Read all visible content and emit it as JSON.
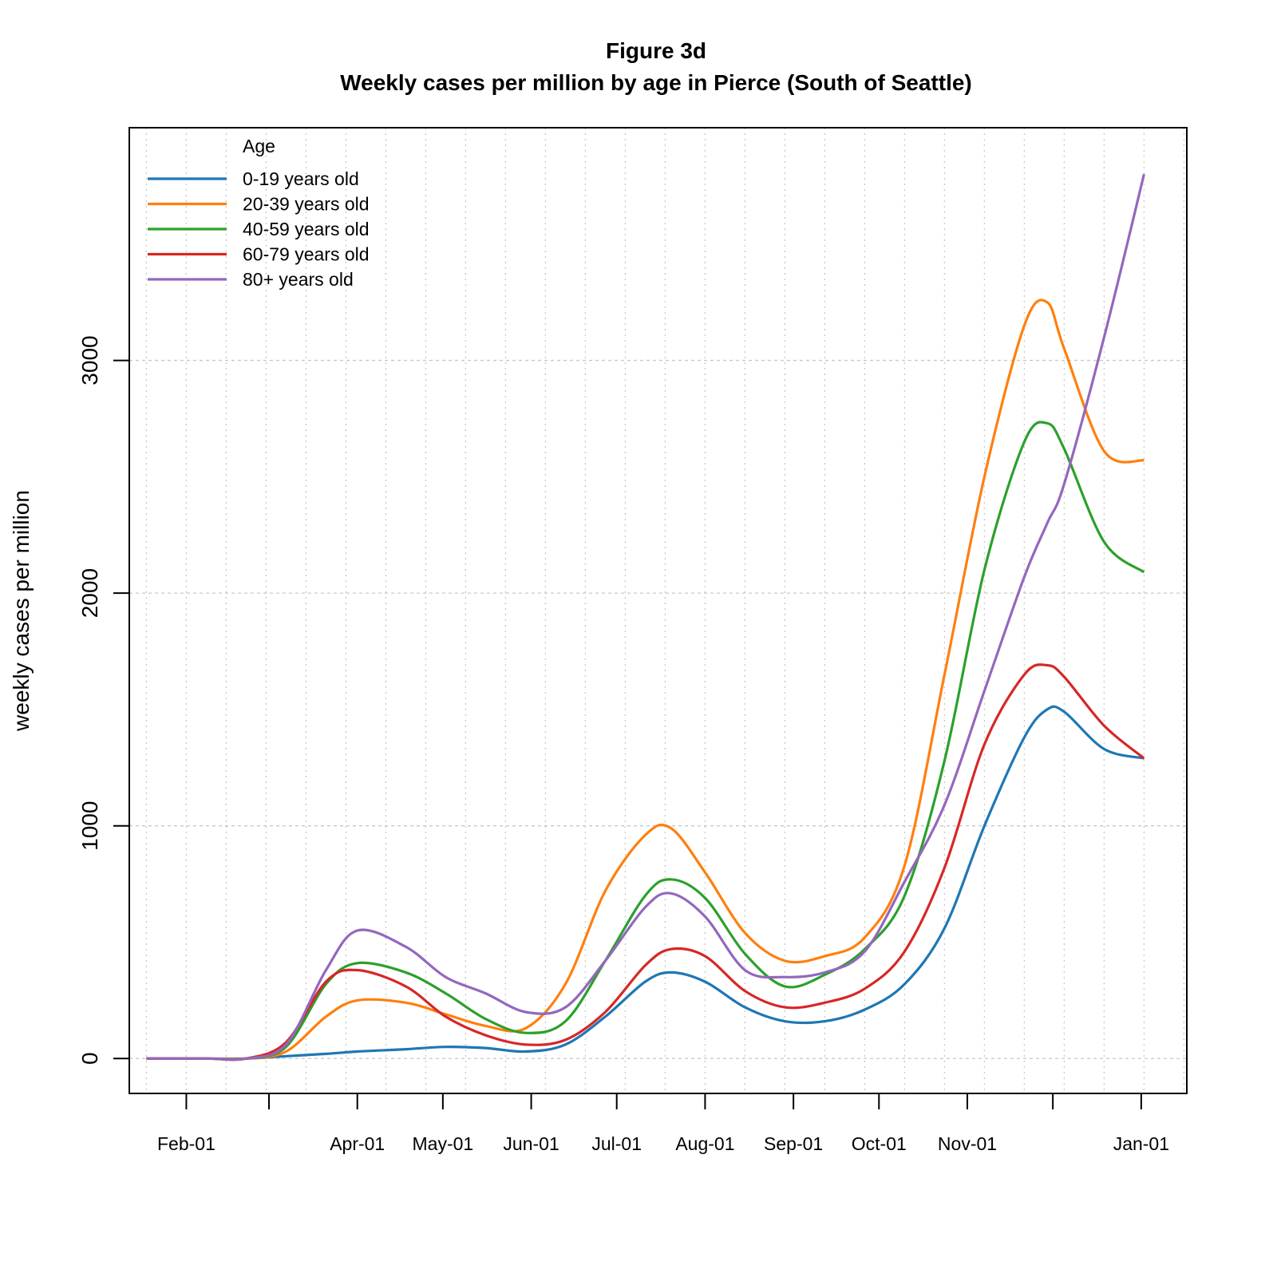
{
  "chart_data": {
    "type": "line",
    "title": "Figure 3d",
    "subtitle": "Weekly cases per million by age in Pierce (South of Seattle)",
    "xlabel": "",
    "ylabel": "weekly cases per million",
    "x_tick_labels": [
      "Feb-01",
      "",
      "Apr-01",
      "May-01",
      "Jun-01",
      "Jul-01",
      "Aug-01",
      "Sep-01",
      "Oct-01",
      "Nov-01",
      "",
      "Jan-01"
    ],
    "x_tick_dates": [
      "2020-02-01",
      "2020-03-01",
      "2020-04-01",
      "2020-05-01",
      "2020-06-01",
      "2020-07-01",
      "2020-08-01",
      "2020-09-01",
      "2020-10-01",
      "2020-11-01",
      "2020-12-01",
      "2021-01-01"
    ],
    "y_ticks": [
      0,
      1000,
      2000,
      3000
    ],
    "xlim": [
      "2020-01-12",
      "2021-01-17"
    ],
    "ylim": [
      -150,
      4000
    ],
    "grid": true,
    "grid_style": "dotted",
    "legend_title": "Age",
    "legend_position": "top-left",
    "x": [
      "2020-01-18",
      "2020-02-08",
      "2020-02-22",
      "2020-03-07",
      "2020-03-21",
      "2020-04-01",
      "2020-04-18",
      "2020-05-02",
      "2020-05-16",
      "2020-05-30",
      "2020-06-13",
      "2020-06-27",
      "2020-07-11",
      "2020-07-20",
      "2020-08-01",
      "2020-08-15",
      "2020-08-29",
      "2020-09-12",
      "2020-09-26",
      "2020-10-10",
      "2020-10-24",
      "2020-11-07",
      "2020-11-21",
      "2020-11-29",
      "2020-12-05",
      "2020-12-19",
      "2021-01-02"
    ],
    "series": [
      {
        "name": "0-19 years old",
        "color": "#1f77b4",
        "values": [
          0,
          0,
          0,
          10,
          20,
          30,
          40,
          50,
          45,
          30,
          60,
          180,
          330,
          370,
          330,
          220,
          160,
          160,
          210,
          320,
          560,
          1000,
          1380,
          1500,
          1490,
          1330,
          1290
        ]
      },
      {
        "name": "20-39 years old",
        "color": "#ff7f0e",
        "values": [
          0,
          0,
          0,
          30,
          180,
          250,
          240,
          190,
          140,
          130,
          320,
          720,
          960,
          990,
          800,
          540,
          420,
          440,
          520,
          830,
          1650,
          2500,
          3150,
          3250,
          3050,
          2610,
          2570
        ]
      },
      {
        "name": "40-59 years old",
        "color": "#2ca02c",
        "values": [
          0,
          0,
          0,
          50,
          320,
          410,
          370,
          280,
          170,
          110,
          160,
          420,
          700,
          770,
          690,
          450,
          310,
          360,
          470,
          700,
          1280,
          2100,
          2650,
          2730,
          2620,
          2220,
          2090
        ]
      },
      {
        "name": "60-79 years old",
        "color": "#d62728",
        "values": [
          0,
          0,
          0,
          70,
          330,
          380,
          310,
          180,
          100,
          60,
          80,
          200,
          400,
          470,
          440,
          290,
          220,
          240,
          300,
          460,
          820,
          1350,
          1650,
          1690,
          1640,
          1430,
          1290
        ]
      },
      {
        "name": "80+ years old",
        "color": "#9467bd",
        "values": [
          0,
          0,
          0,
          60,
          380,
          550,
          480,
          350,
          280,
          200,
          220,
          420,
          650,
          710,
          610,
          380,
          350,
          370,
          460,
          760,
          1090,
          1580,
          2070,
          2300,
          2470,
          3100,
          3800
        ]
      }
    ]
  }
}
